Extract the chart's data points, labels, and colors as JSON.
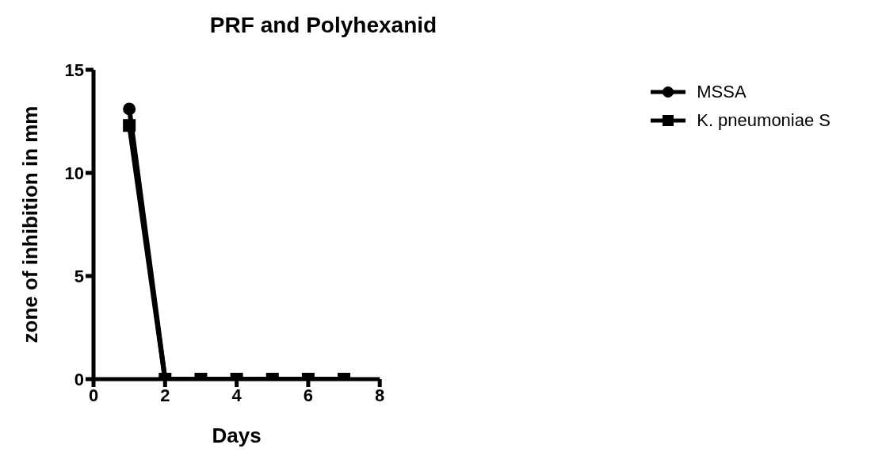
{
  "chart_data": {
    "type": "line",
    "title": "PRF and Polyhexanid",
    "xlabel": "Days",
    "ylabel": "zone of inhibition in mm",
    "x": [
      1,
      2,
      3,
      4,
      5,
      6,
      7
    ],
    "series": [
      {
        "name": "MSSA",
        "color": "#000000",
        "marker": "circle",
        "values": [
          13.1,
          0,
          0,
          0,
          0,
          0,
          0
        ]
      },
      {
        "name": "K. pneumoniae S",
        "color": "#000000",
        "marker": "square",
        "values": [
          12.3,
          0,
          0,
          0,
          0,
          0,
          0
        ]
      }
    ],
    "xlim": [
      0,
      8
    ],
    "xticks": [
      0,
      2,
      4,
      6,
      8
    ],
    "ylim": [
      0,
      15
    ],
    "yticks": [
      0,
      5,
      10,
      15
    ],
    "grid": false,
    "legend": "top right",
    "line_style": "solid"
  }
}
